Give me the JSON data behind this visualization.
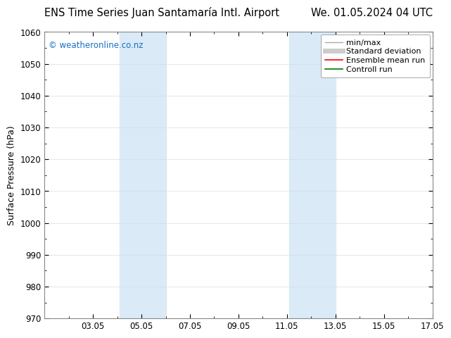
{
  "title_left": "ENS Time Series Juan Santamaría Intl. Airport",
  "title_right": "We. 01.05.2024 04 UTC",
  "ylabel": "Surface Pressure (hPa)",
  "ylim": [
    970,
    1060
  ],
  "yticks": [
    970,
    980,
    990,
    1000,
    1010,
    1020,
    1030,
    1040,
    1050,
    1060
  ],
  "xlim": [
    1,
    17
  ],
  "xtick_labels": [
    "03.05",
    "05.05",
    "07.05",
    "09.05",
    "11.05",
    "13.05",
    "15.05",
    "17.05"
  ],
  "xtick_positions": [
    3,
    5,
    7,
    9,
    11,
    13,
    15,
    17
  ],
  "shaded_bands": [
    {
      "x_start": 4.1,
      "x_end": 6.0,
      "color": "#daeaf7"
    },
    {
      "x_start": 11.1,
      "x_end": 13.0,
      "color": "#daeaf7"
    }
  ],
  "watermark": "© weatheronline.co.nz",
  "watermark_color": "#1a6fc4",
  "legend_items": [
    {
      "label": "min/max",
      "color": "#aaaaaa",
      "lw": 1.0
    },
    {
      "label": "Standard deviation",
      "color": "#cccccc",
      "lw": 5
    },
    {
      "label": "Ensemble mean run",
      "color": "#ff0000",
      "lw": 1.2
    },
    {
      "label": "Controll run",
      "color": "#007700",
      "lw": 1.2
    }
  ],
  "bg_color": "#ffffff",
  "plot_bg_color": "#ffffff",
  "grid_color": "#dddddd",
  "tick_label_fontsize": 8.5,
  "title_fontsize": 10.5,
  "ylabel_fontsize": 9,
  "watermark_fontsize": 8.5,
  "legend_fontsize": 8
}
